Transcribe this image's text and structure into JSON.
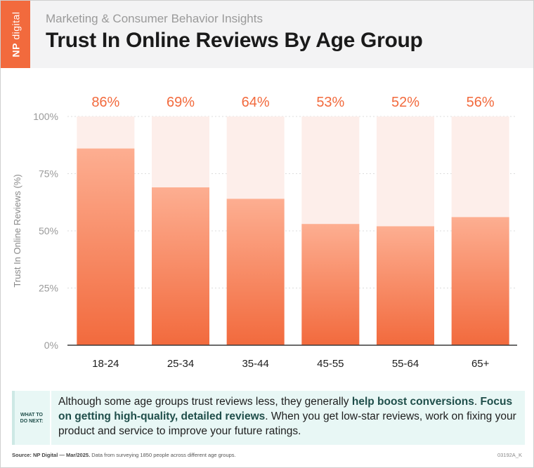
{
  "header": {
    "subtitle": "Marketing & Consumer Behavior Insights",
    "title": "Trust In Online Reviews By Age Group",
    "logo_np": "NP",
    "logo_digital": "digital"
  },
  "chart_data": {
    "type": "bar",
    "categories": [
      "18-24",
      "25-34",
      "35-44",
      "45-55",
      "55-64",
      "65+"
    ],
    "values": [
      86,
      69,
      64,
      53,
      52,
      56
    ],
    "data_labels": [
      "86%",
      "69%",
      "64%",
      "53%",
      "52%",
      "56%"
    ],
    "ylabel": "Trust In Online Reviews (%)",
    "ylim": [
      0,
      100
    ],
    "yticks": [
      0,
      25,
      50,
      75,
      100
    ],
    "ytick_labels": [
      "0%",
      "25%",
      "50%",
      "75%",
      "100%"
    ],
    "grid": true,
    "colors": {
      "bar_top": "#fdae91",
      "bar_bottom": "#f26a3d",
      "bar_track": "#fdeeea",
      "value_label": "#f26a3d"
    }
  },
  "callout": {
    "label_line1": "WHAT TO",
    "label_line2": "DO NEXT:",
    "text_1": "Although some age groups trust reviews less, they generally ",
    "bold_1": "help boost conversions",
    "text_2": ". ",
    "bold_2": "Focus on getting high-quality, detailed reviews",
    "text_3": ". When you get low-star reviews, work on fixing your product and service to improve your future ratings."
  },
  "footer": {
    "source_label": "Source: NP Digital — Mar/2025.",
    "source_text": " Data from surveying 1850 people across different age groups.",
    "code": "03192A_K"
  }
}
